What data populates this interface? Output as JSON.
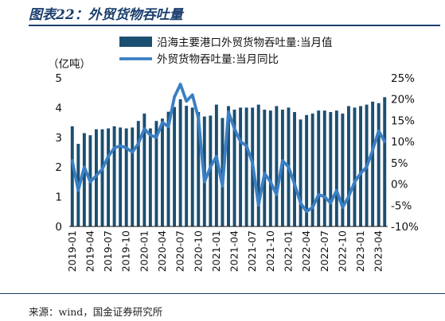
{
  "header": {
    "title": "图表22：外贸货物吞吐量"
  },
  "footer": {
    "source": "来源：wind，国金证券研究所"
  },
  "chart_data": {
    "type": "bar",
    "title": "图表22：外贸货物吞吐量",
    "y_unit_label": "（亿吨）",
    "ylim": [
      0,
      5
    ],
    "yticks": [
      "0",
      "1",
      "2",
      "3",
      "4",
      "5"
    ],
    "y2lim": [
      -10,
      25
    ],
    "y2ticks": [
      "-10%",
      "-5%",
      "0%",
      "5%",
      "10%",
      "15%",
      "20%",
      "25%"
    ],
    "x_tick_labels": [
      "2019-01",
      "2019-04",
      "2019-07",
      "2019-10",
      "2020-01",
      "2020-04",
      "2020-07",
      "2020-10",
      "2021-01",
      "2021-04",
      "2021-07",
      "2021-10",
      "2022-01",
      "2022-04",
      "2022-07",
      "2022-10",
      "2023-01",
      "2023-04"
    ],
    "categories": [
      "2019-01",
      "2019-02",
      "2019-03",
      "2019-04",
      "2019-05",
      "2019-06",
      "2019-07",
      "2019-08",
      "2019-09",
      "2019-10",
      "2019-11",
      "2019-12",
      "2020-01",
      "2020-02",
      "2020-03",
      "2020-04",
      "2020-05",
      "2020-06",
      "2020-07",
      "2020-08",
      "2020-09",
      "2020-10",
      "2020-11",
      "2020-12",
      "2021-01",
      "2021-02",
      "2021-03",
      "2021-04",
      "2021-05",
      "2021-06",
      "2021-07",
      "2021-08",
      "2021-09",
      "2021-10",
      "2021-11",
      "2021-12",
      "2022-01",
      "2022-02",
      "2022-03",
      "2022-04",
      "2022-05",
      "2022-06",
      "2022-07",
      "2022-08",
      "2022-09",
      "2022-10",
      "2022-11",
      "2022-12",
      "2023-01",
      "2023-02",
      "2023-03",
      "2023-04",
      "2023-05"
    ],
    "series": [
      {
        "name": "沿海主要港口外贸货物吞吐量:当月值",
        "kind": "bar",
        "axis": "left",
        "color": "#1b4f72",
        "values": [
          3.37,
          2.78,
          3.14,
          3.07,
          3.27,
          3.27,
          3.3,
          3.37,
          3.33,
          3.3,
          3.33,
          3.55,
          3.8,
          3.3,
          3.55,
          3.63,
          3.86,
          4.02,
          4.28,
          4.06,
          4.0,
          3.85,
          3.7,
          3.73,
          4.1,
          3.65,
          4.05,
          3.93,
          4.0,
          4.0,
          4.0,
          4.1,
          3.93,
          3.9,
          4.05,
          3.93,
          4.0,
          3.85,
          3.6,
          3.75,
          3.8,
          3.9,
          3.9,
          3.85,
          3.9,
          3.8,
          4.05,
          4.0,
          4.05,
          4.1,
          4.2,
          4.15,
          4.35
        ]
      },
      {
        "name": "外贸货物吞吐量:当月同比",
        "kind": "line",
        "axis": "right",
        "color": "#3a7fc4",
        "values": [
          5.5,
          -1.5,
          4.0,
          0.5,
          2.0,
          3.5,
          6.5,
          8.5,
          9.0,
          8.5,
          7.5,
          9.5,
          13.0,
          11.5,
          11.0,
          14.5,
          13.5,
          20.5,
          23.5,
          19.5,
          21.0,
          15.5,
          0.5,
          4.0,
          6.5,
          -0.5,
          17.0,
          13.0,
          10.0,
          9.0,
          5.0,
          -5.0,
          2.5,
          0.5,
          -2.5,
          5.5,
          4.0,
          0.0,
          -4.5,
          -6.5,
          -5.5,
          -2.5,
          -3.0,
          -4.5,
          -1.5,
          -5.5,
          -3.0,
          0.5,
          2.5,
          4.0,
          8.0,
          12.5,
          10.0
        ]
      }
    ],
    "grid": false,
    "legend_position": "top"
  }
}
